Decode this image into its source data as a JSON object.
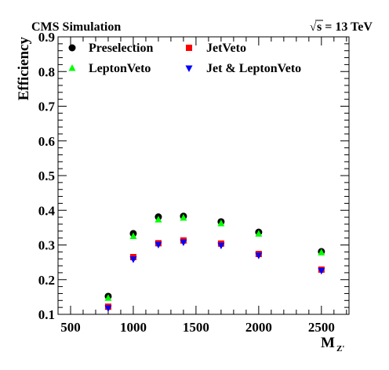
{
  "chart_data": {
    "type": "scatter",
    "header_left": "CMS Simulation",
    "header_right_sqrt": "√",
    "header_right_rest": "s = 13 TeV",
    "xlabel_main": "M",
    "xlabel_sub": "Z'",
    "ylabel": "Efficiency",
    "xlim": [
      400,
      2720
    ],
    "ylim": [
      0.1,
      0.9
    ],
    "xticks": [
      "500",
      "1000",
      "1500",
      "2000",
      "2500"
    ],
    "yticks": [
      "0.1",
      "0.2",
      "0.3",
      "0.4",
      "0.5",
      "0.6",
      "0.7",
      "0.8",
      "0.9"
    ],
    "legend_placement": "top",
    "grid": false,
    "x": [
      800,
      1000,
      1200,
      1400,
      1700,
      2000,
      2500
    ],
    "series": [
      {
        "name": "Preselection",
        "marker": "circle",
        "color": "#000000",
        "values": [
          0.152,
          0.333,
          0.381,
          0.383,
          0.367,
          0.337,
          0.281
        ]
      },
      {
        "name": "JetVeto",
        "marker": "square",
        "color": "#ff0000",
        "values": [
          0.122,
          0.265,
          0.305,
          0.313,
          0.304,
          0.274,
          0.229
        ]
      },
      {
        "name": "LeptonVeto",
        "marker": "triangle-up",
        "color": "#00ff00",
        "values": [
          0.147,
          0.325,
          0.373,
          0.378,
          0.362,
          0.332,
          0.278
        ]
      },
      {
        "name": "Jet & LeptonVeto",
        "marker": "triangle-down",
        "color": "#0000ff",
        "values": [
          0.118,
          0.259,
          0.301,
          0.308,
          0.299,
          0.27,
          0.226
        ]
      }
    ]
  }
}
